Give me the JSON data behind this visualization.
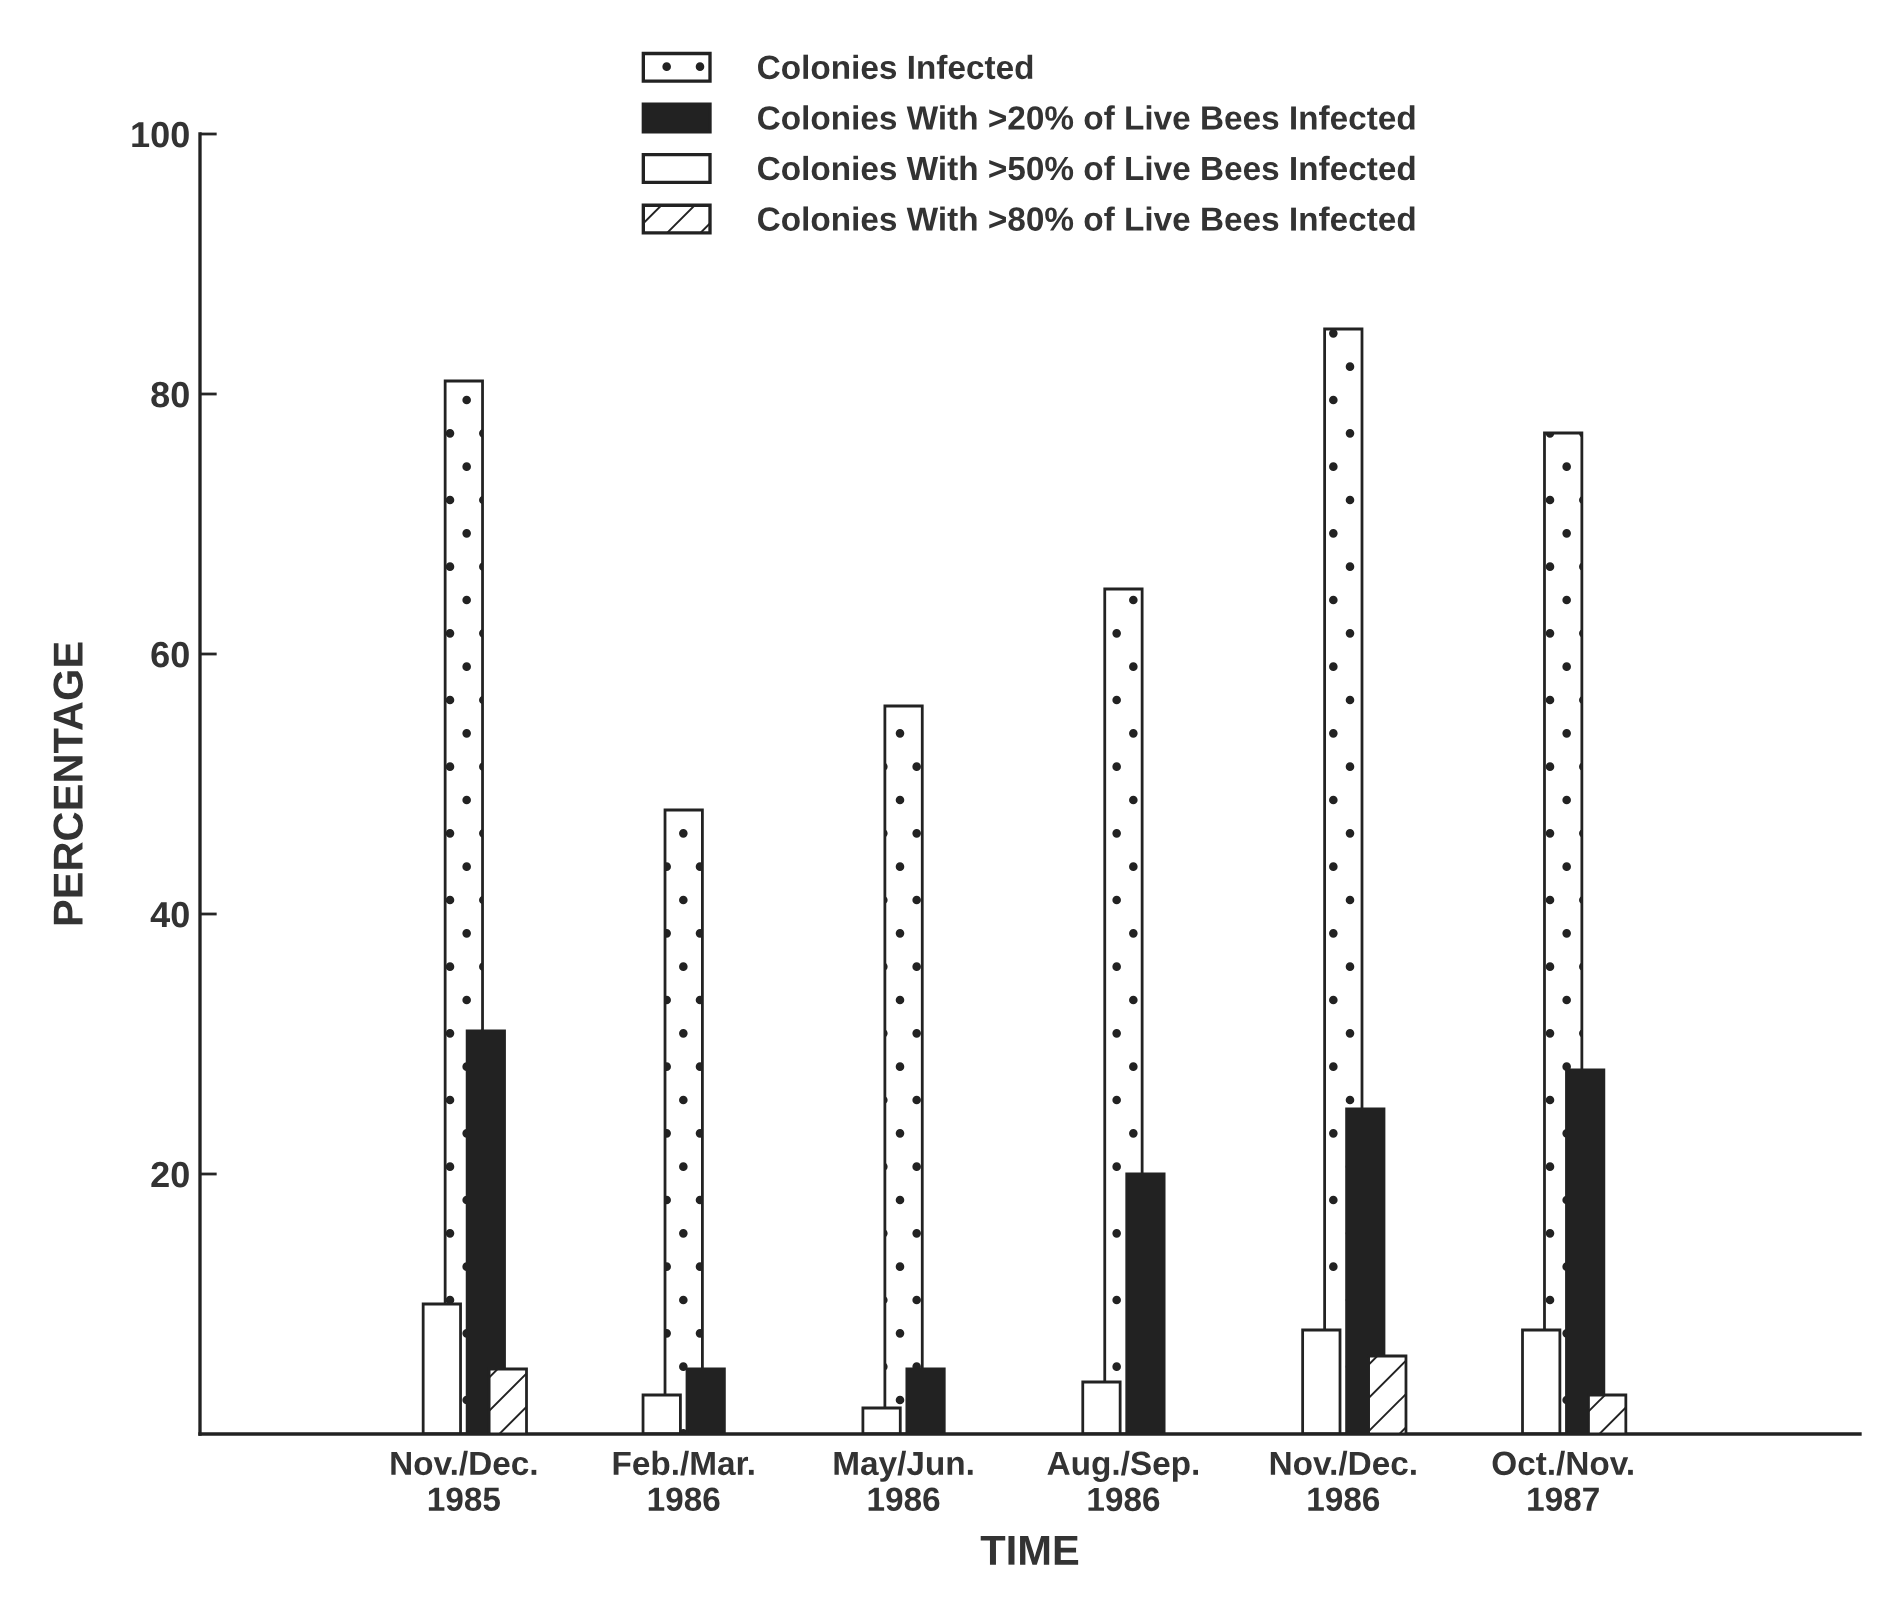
{
  "chart_data": {
    "type": "bar",
    "xlabel": "TIME",
    "ylabel": "PERCENTAGE",
    "categories": [
      "Nov./Dec.\n1985",
      "Feb./Mar.\n1986",
      "May/Jun.\n1986",
      "Aug./Sep.\n1986",
      "Nov./Dec.\n1986",
      "Oct./Nov.\n1987"
    ],
    "series": [
      {
        "name": "Colonies Infected",
        "color": "#222222",
        "values": [
          81,
          48,
          56,
          65,
          85,
          77
        ]
      },
      {
        "name": "Colonies With >20% of Live Bees Infected",
        "color": "#222222",
        "values": [
          31,
          5,
          5,
          20,
          25,
          28
        ]
      },
      {
        "name": "Colonies With >50% of Live Bees Infected",
        "color": "#ffffff",
        "values": [
          10,
          3,
          2,
          4,
          8,
          8
        ]
      },
      {
        "name": "Colonies With >80% of Live Bees Infected",
        "color": "#222222",
        "values": [
          5,
          null,
          null,
          null,
          6,
          3
        ]
      }
    ],
    "ylim": [
      0,
      100
    ],
    "yticks": [
      20,
      40,
      60,
      80,
      100
    ],
    "grid": false,
    "legend": "top"
  }
}
